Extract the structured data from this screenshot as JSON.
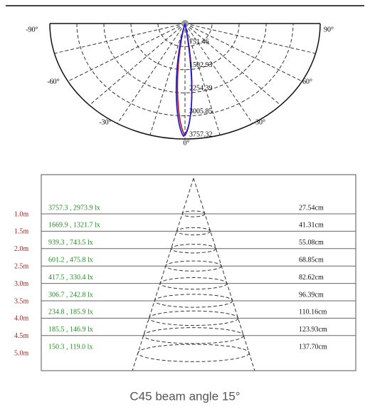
{
  "polar": {
    "angle_labels": [
      "-90°",
      "90°",
      "-60°",
      "60°",
      "-30°",
      "30°",
      "0°"
    ],
    "radial_labels": [
      "751.46",
      "1502.93",
      "2254.39",
      "3005.85",
      "3757.32"
    ]
  },
  "table": {
    "rows": [
      [
        "1.0m",
        "3757.3 , 2973.9 lx",
        "27.54cm"
      ],
      [
        "1.5m",
        "1669.9 , 1321.7 lx",
        "41.31cm"
      ],
      [
        "2.0m",
        "939.3 , 743.5 lx",
        "55.08cm"
      ],
      [
        "2.5m",
        "601.2 , 475.8 lx",
        "68.85cm"
      ],
      [
        "3.0m",
        "417.5 , 330.4 lx",
        "82.62cm"
      ],
      [
        "3.5m",
        "306.7 , 242.8 lx",
        "96.39cm"
      ],
      [
        "4.0m",
        "234.8 , 185.9 lx",
        "110.16cm"
      ],
      [
        "4.5m",
        "185.5 , 146.9 lx",
        "123.93cm"
      ],
      [
        "5.0m",
        "150.3 , 119.0 lx",
        "137.70cm"
      ]
    ]
  },
  "caption": "C45 beam angle 15°"
}
